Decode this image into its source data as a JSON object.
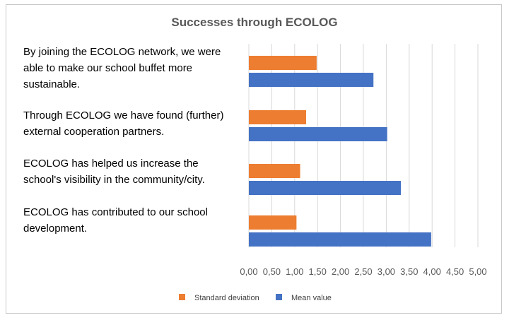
{
  "chart_data": {
    "type": "bar",
    "orientation": "horizontal",
    "title": "Successes through ECOLOG",
    "categories": [
      "By joining the ECOLOG network, we were able to make our school buffet more sustainable.",
      "Through ECOLOG we have found (further) external cooperation partners.",
      "ECOLOG has helped us increase the school's visibility in the community/city.",
      "ECOLOG has contributed to our school development."
    ],
    "category_lines": [
      [
        "By joining the ECOLOG network, we were",
        "able to make our school buffet more",
        "sustainable."
      ],
      [
        "Through ECOLOG we have found (further)",
        "external cooperation partners."
      ],
      [
        "ECOLOG has helped us increase the",
        "school's visibility in the community/city."
      ],
      [
        "ECOLOG has contributed to our school",
        "development."
      ]
    ],
    "series": [
      {
        "name": "Standard deviation",
        "color": "#ED7D31",
        "values": [
          1.48,
          1.25,
          1.12,
          1.04
        ]
      },
      {
        "name": "Mean value",
        "color": "#4472C4",
        "values": [
          2.72,
          3.02,
          3.32,
          3.98
        ]
      }
    ],
    "xlim": [
      0,
      5
    ],
    "xticks": [
      "0,00",
      "0,50",
      "1,00",
      "1,50",
      "2,00",
      "2,50",
      "3,00",
      "3,50",
      "4,00",
      "4,50",
      "5,00"
    ],
    "grid": true,
    "legend": "bottom"
  }
}
